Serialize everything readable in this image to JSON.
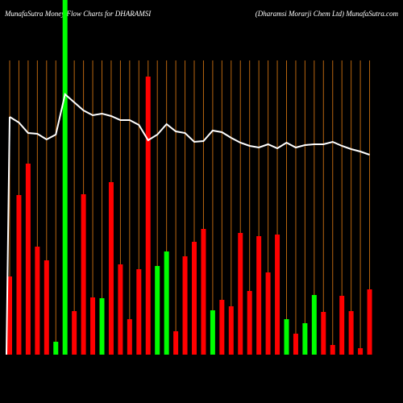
{
  "chart_data": {
    "type": "bar-line",
    "title": "MunafaSutra  Money Flow  Charts for DHARAMSI",
    "subtitle": "(Dharamsi   Morarji   Chem Ltd) MunafaSutra.com",
    "ylim": [
      0,
      440
    ],
    "grid_color": "#b8650f",
    "line_color": "#ffffff",
    "bars": {
      "values": [
        97,
        198,
        237,
        134,
        117,
        16,
        440,
        54,
        199,
        71,
        70,
        214,
        112,
        44,
        106,
        345,
        110,
        128,
        29,
        122,
        140,
        156,
        55,
        68,
        60,
        151,
        79,
        147,
        102,
        149,
        44,
        26,
        39,
        74,
        53,
        12,
        73,
        54,
        8,
        81
      ],
      "colors": [
        "#ff0000",
        "#ff0000",
        "#ff0000",
        "#ff0000",
        "#ff0000",
        "#00ff00",
        "#00ff00",
        "#ff0000",
        "#ff0000",
        "#ff0000",
        "#00ff00",
        "#ff0000",
        "#ff0000",
        "#ff0000",
        "#ff0000",
        "#ff0000",
        "#00ff00",
        "#00ff00",
        "#ff0000",
        "#ff0000",
        "#ff0000",
        "#ff0000",
        "#00ff00",
        "#ff0000",
        "#ff0000",
        "#ff0000",
        "#ff0000",
        "#ff0000",
        "#ff0000",
        "#ff0000",
        "#00ff00",
        "#ff0000",
        "#00ff00",
        "#00ff00",
        "#ff0000",
        "#ff0000",
        "#ff0000",
        "#ff0000",
        "#ff0000",
        "#ff0000"
      ]
    },
    "line": {
      "values": [
        295,
        288,
        275,
        274,
        267,
        273,
        323,
        313,
        303,
        297,
        299,
        296,
        291,
        291,
        285,
        266,
        273,
        286,
        277,
        275,
        264,
        265,
        278,
        276,
        269,
        263,
        259,
        257,
        261,
        256,
        263,
        257,
        260,
        261,
        261,
        264,
        259,
        255,
        252,
        248
      ]
    }
  }
}
